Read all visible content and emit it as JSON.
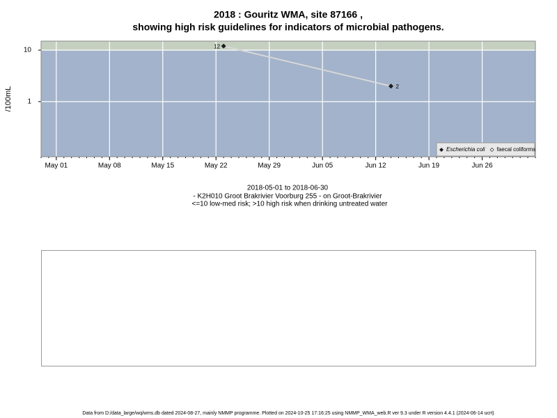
{
  "chart_data": {
    "type": "line",
    "title": [
      "2018 : Gouritz WMA, site 87166 ,",
      "showing high risk guidelines for indicators of microbial pathogens."
    ],
    "subtitle": [
      "2018-05-01 to 2018-06-30",
      "- K2H010 Groot Brakrivier Voorburg 255 - on Groot-Brakrivier",
      "<=10 low-med risk; >10 high risk when drinking untreated water"
    ],
    "y_label": "/100mL",
    "x": [
      "May 23",
      "Jun 14"
    ],
    "series": [
      {
        "name": "Escherichia coli",
        "color": "#222222",
        "values": [
          12,
          2
        ]
      },
      {
        "name": "faecal coliforms",
        "color": "#ffffff",
        "values": [
          null,
          null
        ]
      }
    ],
    "xlim": [
      "Apr 29",
      "Jul 03"
    ],
    "xticks": [
      "May 01",
      "May 08",
      "May 15",
      "May 22",
      "May 29",
      "Jun 05",
      "Jun 12",
      "Jun 19",
      "Jun 26"
    ],
    "ylim": [
      0.085,
      15
    ],
    "yticks": [
      1,
      10
    ],
    "log_y": true,
    "high_risk_threshold": 10,
    "grid": true,
    "legend": "bottom-right",
    "footer": "Data from D:/data_large/wq/wms.db dated 2024-08-27, mainly NMMP programme. Plotted on 2024-10-25 17:16:25 using NMMP_WMA_web.R ver 9.3 under R version 4.4.1 (2024-06-14 ucrt)"
  }
}
